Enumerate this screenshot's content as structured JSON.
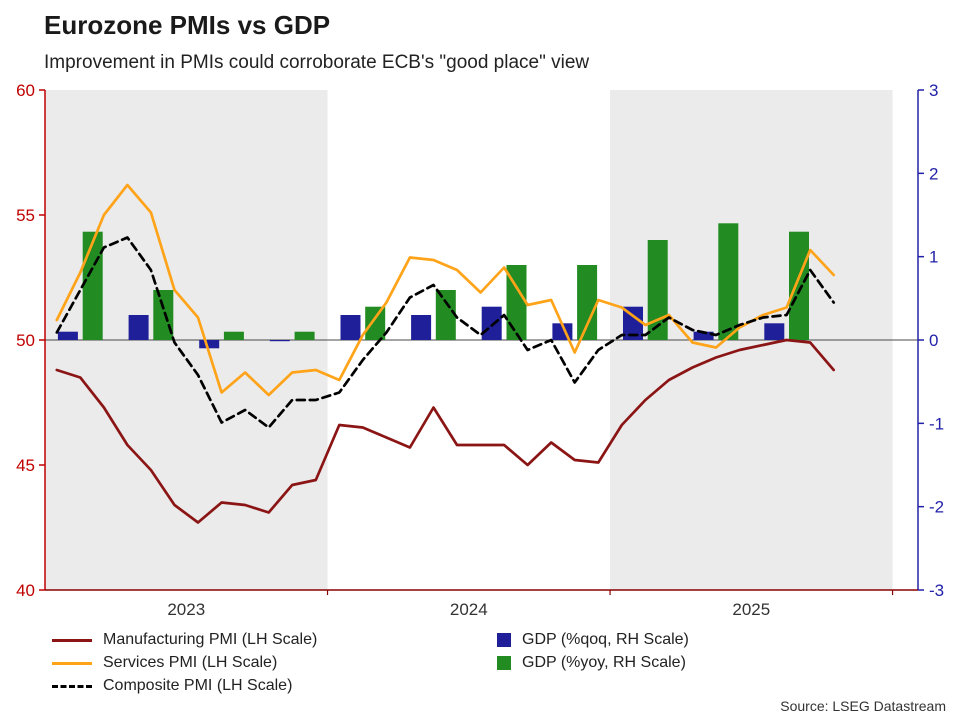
{
  "page": {
    "title": "Eurozone PMIs vs GDP",
    "subtitle": "Improvement in PMIs could corroborate ECB's \"good place\" view",
    "source": "Source: LSEG Datastream"
  },
  "chart_data": {
    "type": "mixed",
    "title": "Eurozone PMIs vs GDP",
    "subtitle": "Improvement in PMIs could corroborate ECB's \"good place\" view",
    "months": [
      "2023-01",
      "2023-02",
      "2023-03",
      "2023-04",
      "2023-05",
      "2023-06",
      "2023-07",
      "2023-08",
      "2023-09",
      "2023-10",
      "2023-11",
      "2023-12",
      "2024-01",
      "2024-02",
      "2024-03",
      "2024-04",
      "2024-05",
      "2024-06",
      "2024-07",
      "2024-08",
      "2024-09",
      "2024-10",
      "2024-11",
      "2024-12",
      "2025-01",
      "2025-02",
      "2025-03",
      "2025-04",
      "2025-05",
      "2025-06",
      "2025-07",
      "2025-08",
      "2025-09",
      "2025-10"
    ],
    "line_series": [
      {
        "id": "manufacturing-pmi",
        "name": "Manufacturing PMI (LH Scale)",
        "axis": "left",
        "color": "#8B1515",
        "dash": null,
        "values": [
          48.8,
          48.5,
          47.3,
          45.8,
          44.8,
          43.4,
          42.7,
          43.5,
          43.4,
          43.1,
          44.2,
          44.4,
          46.6,
          46.5,
          46.1,
          45.7,
          47.3,
          45.8,
          45.8,
          45.8,
          45.0,
          45.9,
          45.2,
          45.1,
          46.6,
          47.6,
          48.4,
          48.9,
          49.3,
          49.6,
          49.8,
          50.0,
          49.9,
          48.8
        ]
      },
      {
        "id": "services-pmi",
        "name": "Services PMI (LH Scale)",
        "axis": "left",
        "color": "#FFA319",
        "dash": null,
        "values": [
          50.8,
          52.7,
          55.0,
          56.2,
          55.1,
          52.0,
          50.9,
          47.9,
          48.7,
          47.8,
          48.7,
          48.8,
          48.4,
          50.2,
          51.5,
          53.3,
          53.2,
          52.8,
          51.9,
          52.9,
          51.4,
          51.6,
          49.5,
          51.6,
          51.3,
          50.6,
          51.0,
          49.9,
          49.7,
          50.5,
          51.0,
          51.3,
          53.6,
          52.6
        ]
      },
      {
        "id": "composite-pmi",
        "name": "Composite PMI (LH Scale)",
        "axis": "left",
        "color": "#000000",
        "dash": "8,5",
        "values": [
          50.3,
          52.0,
          53.7,
          54.1,
          52.8,
          49.9,
          48.6,
          46.7,
          47.2,
          46.5,
          47.6,
          47.6,
          47.9,
          49.2,
          50.3,
          51.7,
          52.2,
          50.9,
          50.2,
          51.0,
          49.6,
          50.0,
          48.3,
          49.6,
          50.2,
          50.2,
          50.9,
          50.4,
          50.2,
          50.6,
          50.9,
          51.0,
          52.8,
          51.5
        ]
      }
    ],
    "quarters": [
      "2023-Q1",
      "2023-Q2",
      "2023-Q3",
      "2023-Q4",
      "2024-Q1",
      "2024-Q2",
      "2024-Q3",
      "2024-Q4",
      "2025-Q1",
      "2025-Q2",
      "2025-Q3"
    ],
    "bar_series": [
      {
        "id": "gdp-qoq",
        "name": "GDP (%qoq, RH Scale)",
        "axis": "right",
        "color": "#1F1F99",
        "values": [
          0.1,
          0.3,
          -0.1,
          0.0,
          0.3,
          0.3,
          0.4,
          0.2,
          0.4,
          0.1,
          0.2
        ]
      },
      {
        "id": "gdp-yoy",
        "name": "GDP (%yoy, RH Scale)",
        "axis": "right",
        "color": "#228B22",
        "values": [
          1.3,
          0.6,
          0.1,
          0.1,
          0.4,
          0.6,
          0.9,
          0.9,
          1.2,
          1.4,
          1.3
        ]
      }
    ],
    "lh_axis": {
      "min": 40,
      "max": 60,
      "ticks": [
        60,
        55,
        50,
        45,
        40
      ],
      "color": "#C00000"
    },
    "rh_axis": {
      "min": -3,
      "max": 3,
      "ticks": [
        3,
        2,
        1,
        0,
        -1,
        -2,
        -3
      ],
      "color": "#2222A8"
    },
    "x_axis": {
      "ticks": [
        "2023",
        "2024",
        "2025"
      ]
    },
    "shaded_years": [
      2023,
      2025
    ],
    "band_color": "#EBEBEB",
    "baseline_lh": 50,
    "legend_position": "bottom",
    "grid": "off"
  }
}
